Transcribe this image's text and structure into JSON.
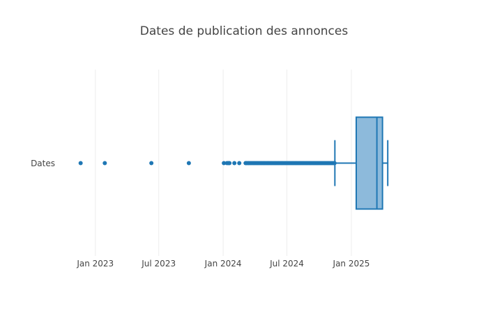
{
  "chart_data": {
    "type": "box",
    "orientation": "horizontal",
    "title": "Dates de publication des annonces",
    "category": "Dates",
    "color": "#1f77b4",
    "box_fill": "#8dbadb",
    "grid": true,
    "x_ticks": [
      {
        "label": "Jan 2023",
        "value": "2023-01-01"
      },
      {
        "label": "Jul 2023",
        "value": "2023-07-01"
      },
      {
        "label": "Jan 2024",
        "value": "2024-01-01"
      },
      {
        "label": "Jul 2024",
        "value": "2024-07-01"
      },
      {
        "label": "Jan 2025",
        "value": "2025-01-01"
      }
    ],
    "x_range": [
      "2022-09-10",
      "2025-08-20"
    ],
    "box": {
      "lower_whisker": "2024-11-15",
      "q1": "2025-01-15",
      "median": "2025-03-15",
      "q3": "2025-03-31",
      "upper_whisker": "2025-04-15"
    },
    "outliers": [
      "2022-11-20",
      "2023-01-28",
      "2023-06-10",
      "2023-09-25",
      "2024-01-03",
      "2024-01-12",
      "2024-01-16",
      "2024-01-19",
      "2024-02-02",
      "2024-02-16",
      "2024-03-05",
      "2024-03-08",
      "2024-03-12",
      "2024-03-15",
      "2024-03-19",
      "2024-03-23",
      "2024-03-27",
      "2024-03-31",
      "2024-04-04",
      "2024-04-08",
      "2024-04-12",
      "2024-04-16",
      "2024-04-20",
      "2024-04-24",
      "2024-04-28",
      "2024-05-02",
      "2024-05-06",
      "2024-05-10",
      "2024-05-14",
      "2024-05-18",
      "2024-05-22",
      "2024-05-26",
      "2024-05-30",
      "2024-06-03",
      "2024-06-07",
      "2024-06-11",
      "2024-06-15",
      "2024-06-19",
      "2024-06-23",
      "2024-06-27",
      "2024-07-01",
      "2024-07-05",
      "2024-07-09",
      "2024-07-13",
      "2024-07-17",
      "2024-07-21",
      "2024-07-25",
      "2024-07-29",
      "2024-08-02",
      "2024-08-06",
      "2024-08-10",
      "2024-08-14",
      "2024-08-18",
      "2024-08-22",
      "2024-08-26",
      "2024-08-30",
      "2024-09-03",
      "2024-09-07",
      "2024-09-11",
      "2024-09-15",
      "2024-09-19",
      "2024-09-23",
      "2024-09-27",
      "2024-10-01",
      "2024-10-05",
      "2024-10-09",
      "2024-10-13",
      "2024-10-17",
      "2024-10-21",
      "2024-10-25",
      "2024-10-29",
      "2024-11-02",
      "2024-11-06",
      "2024-11-10",
      "2024-11-14"
    ]
  }
}
